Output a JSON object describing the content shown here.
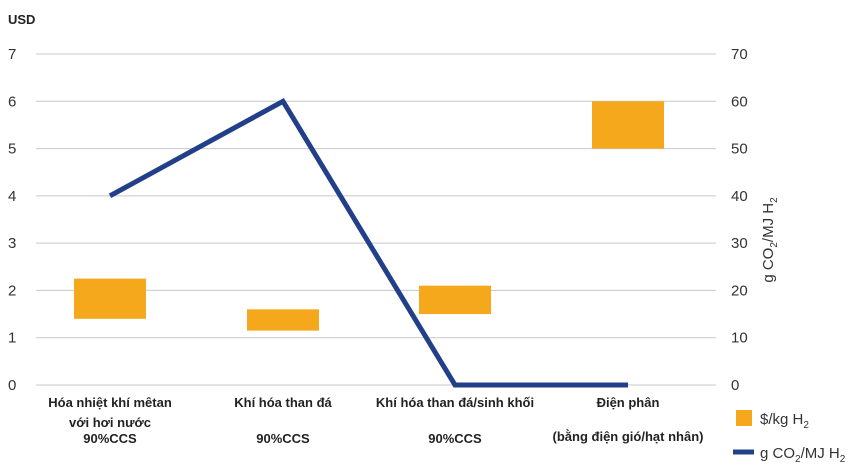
{
  "chart_data": {
    "type": "bar",
    "left_axis_unit": "USD",
    "y_left": {
      "min": 0,
      "max": 7,
      "ticks": [
        "0",
        "1",
        "2",
        "3",
        "4",
        "5",
        "6",
        "7"
      ]
    },
    "y_right": {
      "min": 0,
      "max": 70,
      "ticks": [
        "0",
        "10",
        "20",
        "30",
        "40",
        "50",
        "60",
        "70"
      ],
      "label": "g CO",
      "label_sub": "2",
      "label_mid": "/MJ H",
      "label_sub2": "2"
    },
    "grid": true,
    "legend_position": "bottom-right",
    "categories": [
      {
        "lines": [
          "Hóa nhiệt khí mêtan",
          "với hơi nước",
          "90%CCS"
        ]
      },
      {
        "lines": [
          "Khí hóa than đá",
          "",
          "90%CCS"
        ]
      },
      {
        "lines": [
          "Khí hóa than đá/sinh khối",
          "",
          "90%CCS"
        ]
      },
      {
        "lines": [
          "Điện phân",
          "(bằng điện gió/hạt nhân)",
          ""
        ]
      }
    ],
    "series": [
      {
        "name": "$/kg H",
        "name_sub": "2",
        "type": "range-bar",
        "axis": "left",
        "color": "#F5A81C",
        "ranges": [
          [
            1.4,
            2.25
          ],
          [
            1.15,
            1.6
          ],
          [
            1.5,
            2.1
          ],
          [
            5.0,
            6.0
          ]
        ]
      },
      {
        "name": "g CO",
        "name_sub": "2",
        "name_mid": "/MJ H",
        "name_sub2": "2",
        "type": "line",
        "axis": "right",
        "color": "#22408A",
        "values": [
          40,
          60,
          0,
          0
        ]
      }
    ]
  }
}
